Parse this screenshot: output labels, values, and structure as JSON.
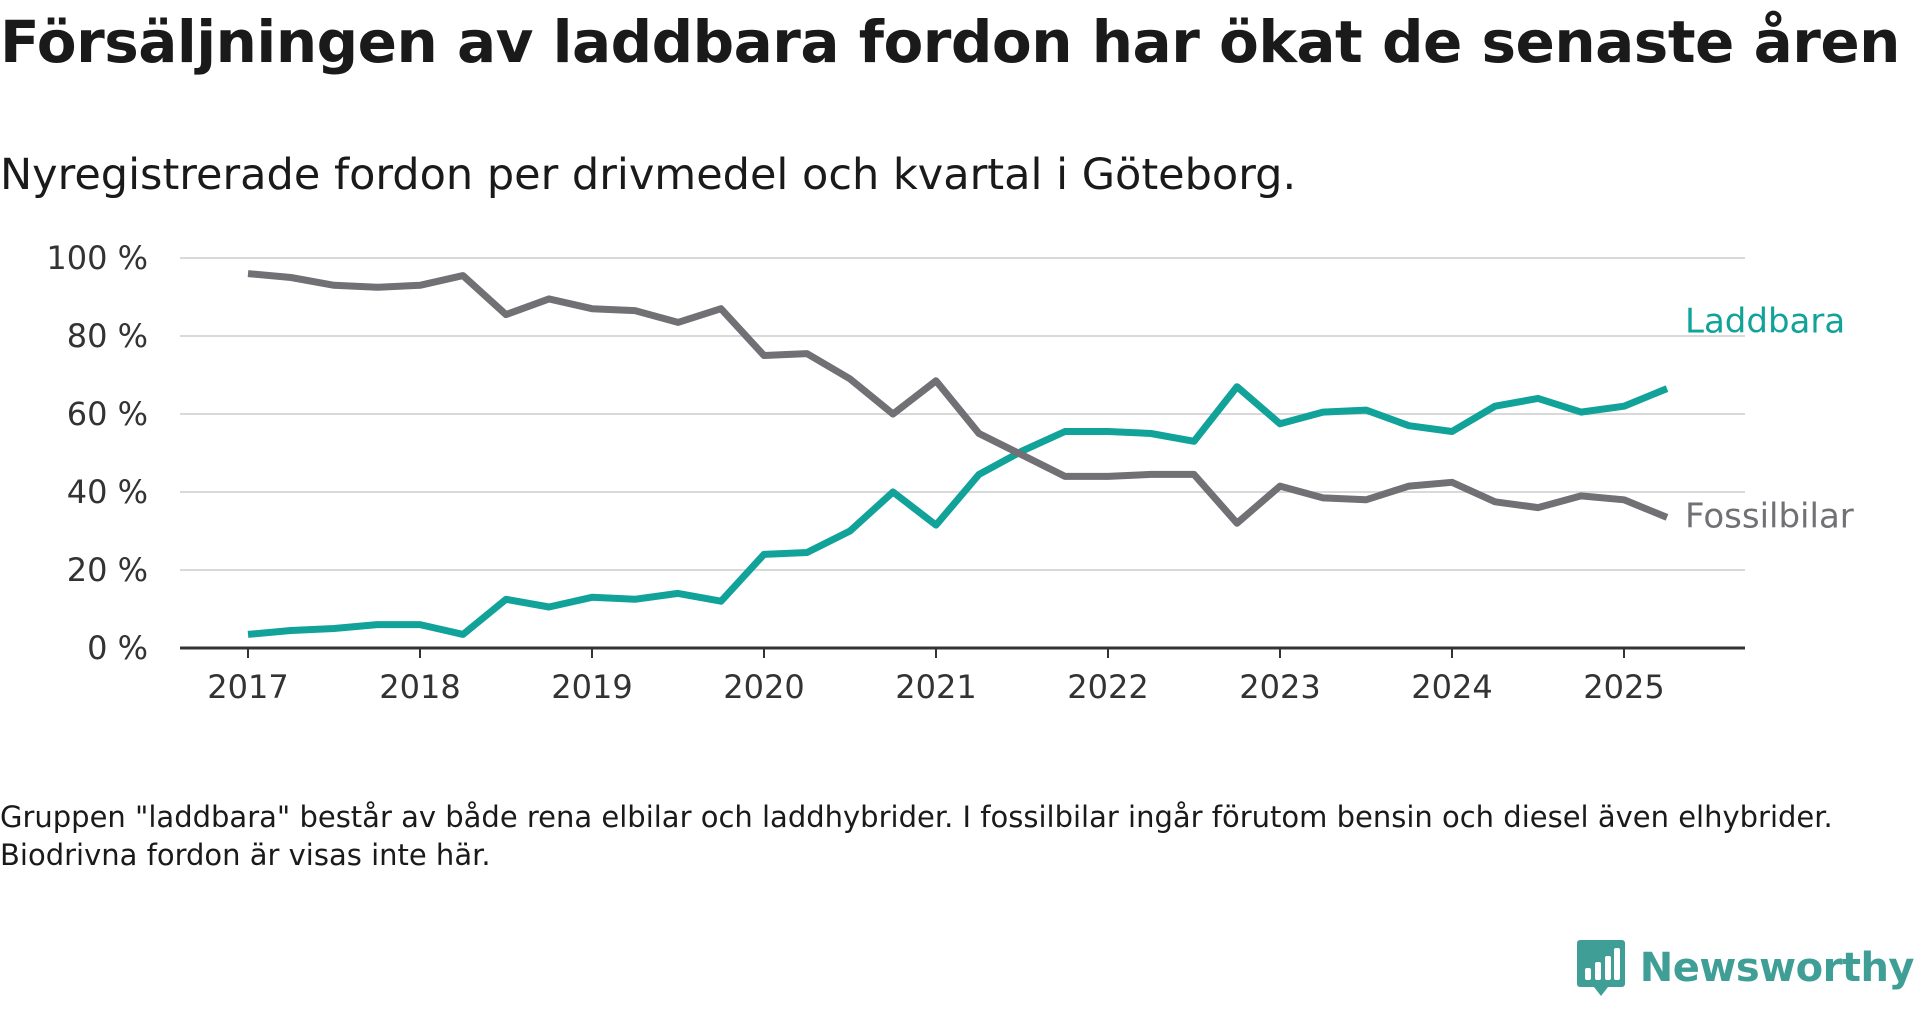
{
  "title": "Försäljningen av laddbara fordon har ökat de senaste åren",
  "subtitle": "Nyregistrerade fordon per drivmedel och kvartal i Göteborg.",
  "note": "Gruppen \"laddbara\" består av både rena elbilar och laddhybrider. I fossilbilar ingår förutom bensin och diesel även elhybrider. Biodrivna fordon är visas inte här.",
  "brand": {
    "name": "Newsworthy",
    "icon": "newsworthy-logo-icon",
    "color": "#3f9f97"
  },
  "chart_data": {
    "type": "line",
    "ylim": [
      0,
      100
    ],
    "y_ticks": [
      {
        "value": 0,
        "label": "0 %"
      },
      {
        "value": 20,
        "label": "20 %"
      },
      {
        "value": 40,
        "label": "40 %"
      },
      {
        "value": 60,
        "label": "60 %"
      },
      {
        "value": 80,
        "label": "80 %"
      },
      {
        "value": 100,
        "label": "100 %"
      }
    ],
    "x_ticks": [
      "2017",
      "2018",
      "2019",
      "2020",
      "2021",
      "2022",
      "2023",
      "2024",
      "2025"
    ],
    "grid": "horizontal",
    "x": [
      "2017 Q1",
      "2017 Q2",
      "2017 Q3",
      "2017 Q4",
      "2018 Q1",
      "2018 Q2",
      "2018 Q3",
      "2018 Q4",
      "2019 Q1",
      "2019 Q2",
      "2019 Q3",
      "2019 Q4",
      "2020 Q1",
      "2020 Q2",
      "2020 Q3",
      "2020 Q4",
      "2021 Q1",
      "2021 Q2",
      "2021 Q3",
      "2021 Q4",
      "2022 Q1",
      "2022 Q2",
      "2022 Q3",
      "2022 Q4",
      "2023 Q1",
      "2023 Q2",
      "2023 Q3",
      "2023 Q4",
      "2024 Q1",
      "2024 Q2",
      "2024 Q3",
      "2024 Q4",
      "2025 Q1",
      "2025 Q2"
    ],
    "series": [
      {
        "name": "Laddbara",
        "color": "#11a29a",
        "values": [
          3.5,
          4.5,
          5,
          6,
          6,
          3.5,
          12.5,
          10.5,
          13,
          12.5,
          14,
          12,
          24,
          24.5,
          30,
          40,
          31.5,
          44.5,
          50.5,
          55.5,
          55.5,
          55,
          53,
          67,
          57.5,
          60.5,
          61,
          57,
          55.5,
          62,
          64,
          60.5,
          62,
          66.5
        ]
      },
      {
        "name": "Fossilbilar",
        "color": "#707075",
        "values": [
          96,
          95,
          93,
          92.5,
          93,
          95.5,
          85.5,
          89.5,
          87,
          86.5,
          83.5,
          87,
          75,
          75.5,
          69,
          60,
          68.5,
          55,
          49.5,
          44,
          44,
          44.5,
          44.5,
          32,
          41.5,
          38.5,
          38,
          41.5,
          42.5,
          37.5,
          36,
          39,
          38,
          33.5
        ]
      }
    ]
  }
}
